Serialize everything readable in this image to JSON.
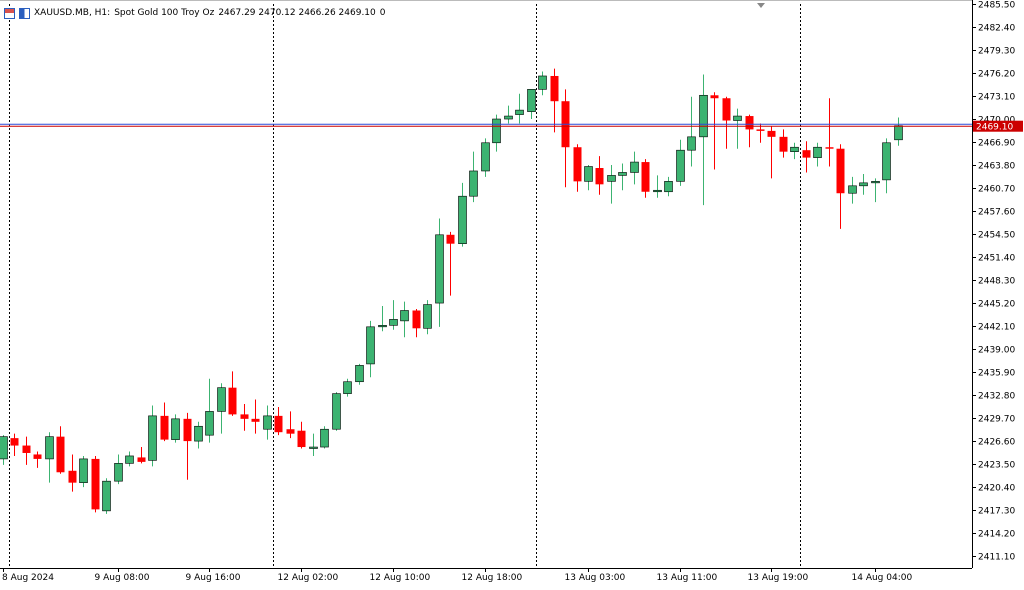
{
  "header": {
    "symbol": "XAUUSD.MB, H1:",
    "description": "Spot Gold 100 Troy Oz",
    "ohlc": "2467.29 2470.12 2466.26 2469.10",
    "volume": "0"
  },
  "colors": {
    "bull": "#3cb371",
    "bear": "#ff0000",
    "price_line": "#cc0000",
    "axis": "#000000"
  },
  "chart_data": {
    "type": "candlestick",
    "title": "",
    "current_price": 2469.1,
    "current_price_label": "2469.10",
    "ylim": [
      2409.5,
      2485.5
    ],
    "y_ticks": [
      "2485.50",
      "2482.40",
      "2479.30",
      "2476.20",
      "2473.10",
      "2470.00",
      "2466.90",
      "2463.80",
      "2460.70",
      "2457.60",
      "2454.50",
      "2451.40",
      "2448.30",
      "2445.20",
      "2442.10",
      "2439.00",
      "2435.90",
      "2432.80",
      "2429.70",
      "2426.60",
      "2423.50",
      "2420.40",
      "2417.30",
      "2414.20",
      "2411.10"
    ],
    "x_labels": [
      {
        "label": "8 Aug 2024",
        "bar": 0
      },
      {
        "label": "9 Aug 08:00",
        "bar": 10
      },
      {
        "label": "9 Aug 16:00",
        "bar": 18
      },
      {
        "label": "12 Aug 02:00",
        "bar": 26
      },
      {
        "label": "12 Aug 10:00",
        "bar": 34
      },
      {
        "label": "12 Aug 18:00",
        "bar": 42
      },
      {
        "label": "13 Aug 03:00",
        "bar": 51
      },
      {
        "label": "13 Aug 11:00",
        "bar": 59
      },
      {
        "label": "13 Aug 19:00",
        "bar": 67
      },
      {
        "label": "14 Aug 04:00",
        "bar": 76
      }
    ],
    "period_separators": [
      0,
      23,
      46,
      69
    ],
    "candles": [
      {
        "o": 2424.2,
        "h": 2427.4,
        "l": 2423.4,
        "c": 2427.2
      },
      {
        "o": 2427.0,
        "h": 2427.6,
        "l": 2424.6,
        "c": 2426.0
      },
      {
        "o": 2426.0,
        "h": 2427.2,
        "l": 2423.4,
        "c": 2425.0
      },
      {
        "o": 2424.8,
        "h": 2425.2,
        "l": 2423.0,
        "c": 2424.2
      },
      {
        "o": 2424.2,
        "h": 2427.8,
        "l": 2421.0,
        "c": 2427.2
      },
      {
        "o": 2427.2,
        "h": 2428.6,
        "l": 2422.2,
        "c": 2422.4
      },
      {
        "o": 2422.6,
        "h": 2424.8,
        "l": 2419.8,
        "c": 2421.0
      },
      {
        "o": 2421.0,
        "h": 2424.6,
        "l": 2420.4,
        "c": 2424.2
      },
      {
        "o": 2424.2,
        "h": 2424.6,
        "l": 2417.0,
        "c": 2417.4
      },
      {
        "o": 2417.2,
        "h": 2421.6,
        "l": 2416.8,
        "c": 2421.2
      },
      {
        "o": 2421.2,
        "h": 2424.8,
        "l": 2420.8,
        "c": 2423.6
      },
      {
        "o": 2423.6,
        "h": 2425.2,
        "l": 2423.2,
        "c": 2424.6
      },
      {
        "o": 2424.4,
        "h": 2425.8,
        "l": 2423.6,
        "c": 2423.8
      },
      {
        "o": 2424.0,
        "h": 2431.4,
        "l": 2423.2,
        "c": 2430.0
      },
      {
        "o": 2430.0,
        "h": 2431.8,
        "l": 2426.6,
        "c": 2426.8
      },
      {
        "o": 2426.8,
        "h": 2430.2,
        "l": 2426.4,
        "c": 2429.6
      },
      {
        "o": 2429.6,
        "h": 2430.4,
        "l": 2421.4,
        "c": 2426.6
      },
      {
        "o": 2426.6,
        "h": 2429.2,
        "l": 2425.6,
        "c": 2428.6
      },
      {
        "o": 2427.4,
        "h": 2435.0,
        "l": 2426.4,
        "c": 2430.6
      },
      {
        "o": 2430.6,
        "h": 2434.4,
        "l": 2427.6,
        "c": 2433.8
      },
      {
        "o": 2433.8,
        "h": 2436.0,
        "l": 2430.0,
        "c": 2430.2
      },
      {
        "o": 2430.2,
        "h": 2431.6,
        "l": 2428.0,
        "c": 2429.6
      },
      {
        "o": 2429.6,
        "h": 2432.2,
        "l": 2427.6,
        "c": 2429.2
      },
      {
        "o": 2428.2,
        "h": 2431.4,
        "l": 2426.8,
        "c": 2430.0
      },
      {
        "o": 2430.0,
        "h": 2431.2,
        "l": 2427.4,
        "c": 2427.8
      },
      {
        "o": 2428.2,
        "h": 2430.6,
        "l": 2427.0,
        "c": 2427.6
      },
      {
        "o": 2428.0,
        "h": 2429.2,
        "l": 2425.6,
        "c": 2425.8
      },
      {
        "o": 2425.6,
        "h": 2427.6,
        "l": 2424.6,
        "c": 2425.8
      },
      {
        "o": 2425.8,
        "h": 2428.6,
        "l": 2425.6,
        "c": 2428.2
      },
      {
        "o": 2428.2,
        "h": 2433.2,
        "l": 2428.0,
        "c": 2433.0
      },
      {
        "o": 2433.0,
        "h": 2435.0,
        "l": 2432.6,
        "c": 2434.6
      },
      {
        "o": 2434.6,
        "h": 2437.0,
        "l": 2434.2,
        "c": 2436.8
      },
      {
        "o": 2437.0,
        "h": 2442.8,
        "l": 2435.2,
        "c": 2442.0
      },
      {
        "o": 2442.0,
        "h": 2444.8,
        "l": 2441.4,
        "c": 2442.2
      },
      {
        "o": 2442.2,
        "h": 2445.6,
        "l": 2441.6,
        "c": 2443.0
      },
      {
        "o": 2442.8,
        "h": 2445.4,
        "l": 2440.6,
        "c": 2444.2
      },
      {
        "o": 2444.2,
        "h": 2444.4,
        "l": 2440.6,
        "c": 2441.8
      },
      {
        "o": 2441.8,
        "h": 2445.6,
        "l": 2441.0,
        "c": 2445.0
      },
      {
        "o": 2445.2,
        "h": 2456.6,
        "l": 2442.0,
        "c": 2454.4
      },
      {
        "o": 2454.4,
        "h": 2454.8,
        "l": 2446.2,
        "c": 2453.2
      },
      {
        "o": 2453.2,
        "h": 2461.4,
        "l": 2452.8,
        "c": 2459.6
      },
      {
        "o": 2459.6,
        "h": 2465.6,
        "l": 2458.8,
        "c": 2463.0
      },
      {
        "o": 2463.0,
        "h": 2467.4,
        "l": 2462.2,
        "c": 2466.8
      },
      {
        "o": 2466.8,
        "h": 2470.6,
        "l": 2465.6,
        "c": 2470.0
      },
      {
        "o": 2470.0,
        "h": 2471.8,
        "l": 2469.4,
        "c": 2470.4
      },
      {
        "o": 2470.6,
        "h": 2473.4,
        "l": 2469.4,
        "c": 2471.2
      },
      {
        "o": 2471.0,
        "h": 2473.6,
        "l": 2470.0,
        "c": 2474.0
      },
      {
        "o": 2474.0,
        "h": 2476.4,
        "l": 2473.2,
        "c": 2475.8
      },
      {
        "o": 2475.8,
        "h": 2476.8,
        "l": 2468.2,
        "c": 2472.4
      },
      {
        "o": 2472.4,
        "h": 2474.0,
        "l": 2460.8,
        "c": 2466.2
      },
      {
        "o": 2466.2,
        "h": 2466.6,
        "l": 2460.2,
        "c": 2461.6
      },
      {
        "o": 2461.6,
        "h": 2463.8,
        "l": 2460.4,
        "c": 2463.6
      },
      {
        "o": 2463.4,
        "h": 2465.0,
        "l": 2459.8,
        "c": 2461.2
      },
      {
        "o": 2461.6,
        "h": 2463.8,
        "l": 2458.6,
        "c": 2462.4
      },
      {
        "o": 2462.4,
        "h": 2464.0,
        "l": 2460.4,
        "c": 2462.8
      },
      {
        "o": 2462.8,
        "h": 2465.6,
        "l": 2461.2,
        "c": 2464.2
      },
      {
        "o": 2464.2,
        "h": 2464.6,
        "l": 2459.4,
        "c": 2460.2
      },
      {
        "o": 2460.2,
        "h": 2462.4,
        "l": 2459.4,
        "c": 2460.4
      },
      {
        "o": 2460.2,
        "h": 2462.2,
        "l": 2459.6,
        "c": 2461.6
      },
      {
        "o": 2461.6,
        "h": 2467.2,
        "l": 2461.0,
        "c": 2465.8
      },
      {
        "o": 2465.8,
        "h": 2473.0,
        "l": 2463.6,
        "c": 2467.6
      },
      {
        "o": 2467.6,
        "h": 2476.0,
        "l": 2458.4,
        "c": 2473.2
      },
      {
        "o": 2473.2,
        "h": 2473.6,
        "l": 2463.2,
        "c": 2472.8
      },
      {
        "o": 2472.8,
        "h": 2473.0,
        "l": 2466.0,
        "c": 2469.8
      },
      {
        "o": 2469.8,
        "h": 2471.4,
        "l": 2466.0,
        "c": 2470.4
      },
      {
        "o": 2470.4,
        "h": 2470.6,
        "l": 2466.2,
        "c": 2468.6
      },
      {
        "o": 2468.6,
        "h": 2469.4,
        "l": 2466.8,
        "c": 2468.4
      },
      {
        "o": 2468.4,
        "h": 2469.0,
        "l": 2462.0,
        "c": 2467.6
      },
      {
        "o": 2467.6,
        "h": 2468.6,
        "l": 2464.8,
        "c": 2465.6
      },
      {
        "o": 2465.6,
        "h": 2466.8,
        "l": 2464.6,
        "c": 2466.2
      },
      {
        "o": 2465.8,
        "h": 2467.0,
        "l": 2462.8,
        "c": 2464.8
      },
      {
        "o": 2464.8,
        "h": 2466.8,
        "l": 2463.6,
        "c": 2466.2
      },
      {
        "o": 2466.2,
        "h": 2472.8,
        "l": 2463.6,
        "c": 2466.0
      },
      {
        "o": 2466.0,
        "h": 2466.6,
        "l": 2455.2,
        "c": 2460.0
      },
      {
        "o": 2460.0,
        "h": 2462.2,
        "l": 2458.6,
        "c": 2461.0
      },
      {
        "o": 2461.0,
        "h": 2462.6,
        "l": 2459.8,
        "c": 2461.4
      },
      {
        "o": 2461.4,
        "h": 2462.0,
        "l": 2458.8,
        "c": 2461.6
      },
      {
        "o": 2461.8,
        "h": 2467.4,
        "l": 2460.0,
        "c": 2466.8
      },
      {
        "o": 2467.2,
        "h": 2470.2,
        "l": 2466.4,
        "c": 2469.1
      }
    ]
  }
}
